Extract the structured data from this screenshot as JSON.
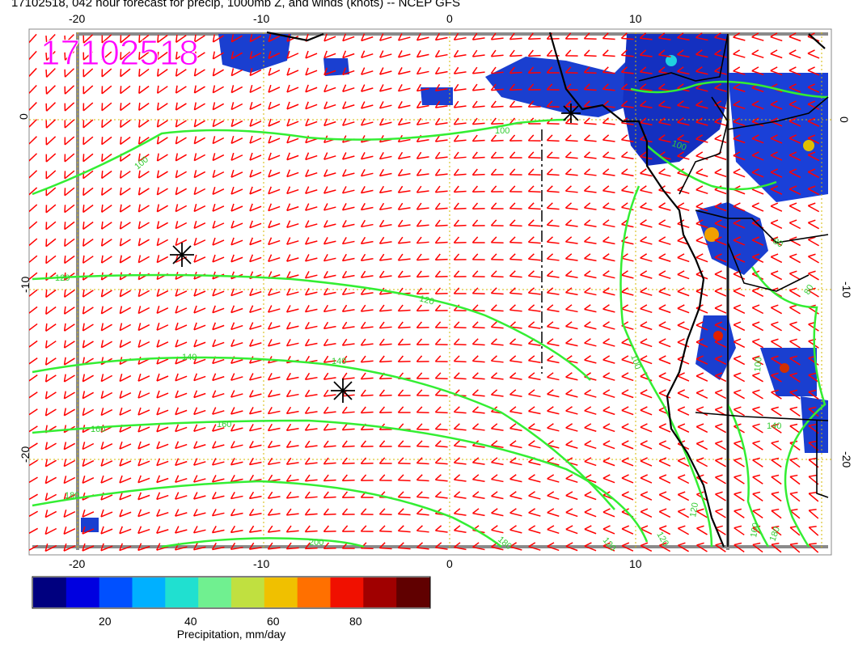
{
  "title": "17102518, 042 hour forecast for precip, 1000mb Z, and winds (knots) -- NCEP GFS",
  "stamp": "17102518",
  "top_ticks": [
    "-20",
    "-10",
    "0",
    "10"
  ],
  "bottom_ticks": [
    "-20",
    "-10",
    "0",
    "10"
  ],
  "left_ticks": [
    "0",
    "-10",
    "-20"
  ],
  "right_ticks": [
    "0",
    "-10",
    "-20"
  ],
  "contour_labels": [
    "100",
    "100",
    "120",
    "120",
    "140",
    "140",
    "160",
    "160",
    "180",
    "180",
    "200",
    "100",
    "120",
    "120",
    "120",
    "100",
    "80",
    "100",
    "80",
    "140",
    "160",
    "180"
  ],
  "colorbar": {
    "label": "Precipitation, mm/day",
    "ticks": [
      "20",
      "40",
      "60",
      "80"
    ],
    "colors": [
      "#00007f",
      "#0000e0",
      "#0050ff",
      "#00b0ff",
      "#20e0d0",
      "#70f090",
      "#c0e040",
      "#f0c000",
      "#ff7000",
      "#f01000",
      "#a00000",
      "#600000"
    ]
  },
  "colors": {
    "wind_barbs": "#ff0000",
    "contours": "#33ee33",
    "gridlines": "#d4b800",
    "coastline": "#000000",
    "stamp": "#ff00ff"
  }
}
